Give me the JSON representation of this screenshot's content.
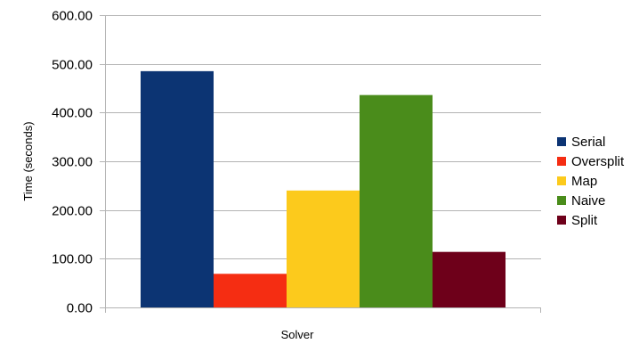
{
  "chart_data": {
    "type": "bar",
    "title": "",
    "xlabel": "Solver",
    "ylabel": "Time (seconds)",
    "ylim": [
      0,
      600
    ],
    "yticks": [
      "0.00",
      "100.00",
      "200.00",
      "300.00",
      "400.00",
      "500.00",
      "600.00"
    ],
    "grid": true,
    "legend_position": "right",
    "series": [
      {
        "name": "Serial",
        "values": [
          485
        ],
        "color": "#0c3473"
      },
      {
        "name": "Oversplit",
        "values": [
          69
        ],
        "color": "#f52d12"
      },
      {
        "name": "Map",
        "values": [
          240
        ],
        "color": "#fcca1c"
      },
      {
        "name": "Naive",
        "values": [
          436
        ],
        "color": "#4a8c1b"
      },
      {
        "name": "Split",
        "values": [
          114
        ],
        "color": "#6e001a"
      }
    ]
  }
}
